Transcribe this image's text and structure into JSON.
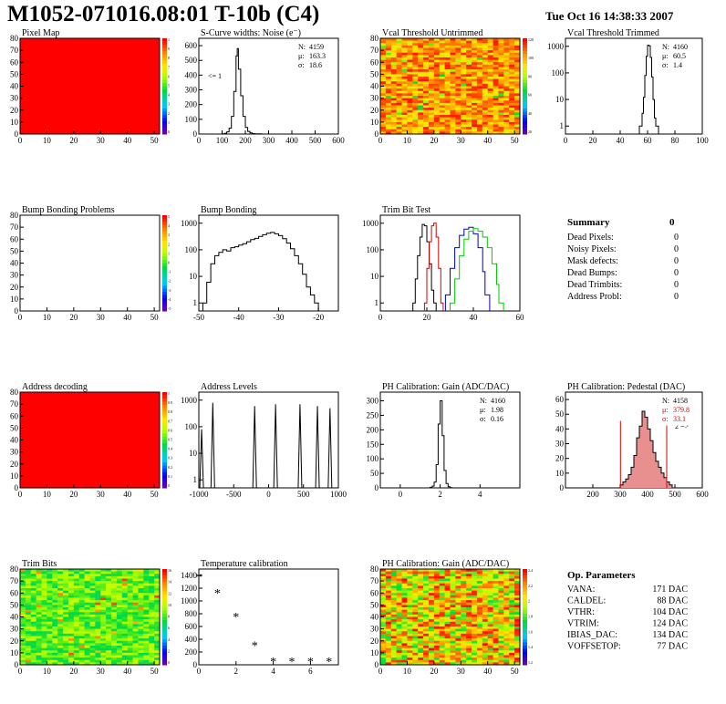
{
  "header": {
    "title": "M1052-071016.08:01 T-10b (C4)",
    "date": "Tue Oct 16 14:38:33 2007"
  },
  "colors": {
    "red_fill": "#ff0000",
    "trim_curve_1": "#000000",
    "trim_curve_2": "#d40000",
    "trim_curve_3": "#0000cc",
    "trim_curve_4": "#00cc00",
    "stat_red_text": "#d40000",
    "pedestal_fill": "#e89090"
  },
  "summary": {
    "title": "Summary",
    "total": "0",
    "rows": [
      {
        "label": "Dead Pixels:",
        "value": "0"
      },
      {
        "label": "Noisy Pixels:",
        "value": "0"
      },
      {
        "label": "Mask defects:",
        "value": "0"
      },
      {
        "label": "Dead Bumps:",
        "value": "0"
      },
      {
        "label": "Dead Trimbits:",
        "value": "0"
      },
      {
        "label": "Address Probl:",
        "value": "0"
      }
    ]
  },
  "op_params": {
    "title": "Op. Parameters",
    "rows": [
      {
        "label": "VANA:",
        "value": "171 DAC"
      },
      {
        "label": "CALDEL:",
        "value": "88 DAC"
      },
      {
        "label": "VTHR:",
        "value": "104 DAC"
      },
      {
        "label": "VTRIM:",
        "value": "124 DAC"
      },
      {
        "label": "IBIAS_DAC:",
        "value": "134 DAC"
      },
      {
        "label": "VOFFSETOP:",
        "value": "77 DAC"
      }
    ]
  },
  "chart_data": [
    {
      "type": "heatmap",
      "title": "Pixel Map",
      "xlim": [
        0,
        52
      ],
      "ylim": [
        0,
        80
      ],
      "xticks": [
        0,
        10,
        20,
        30,
        40,
        50
      ],
      "yticks": [
        0,
        10,
        20,
        30,
        40,
        50,
        60,
        70,
        80
      ],
      "fill": "uniform-red",
      "palette_labels": [
        "1",
        "9",
        "8",
        "7",
        "6",
        "5",
        "4",
        "3",
        "2",
        "1",
        "0"
      ]
    },
    {
      "type": "histogram",
      "title": "S-Curve widths: Noise (e⁻)",
      "xlim": [
        0,
        600
      ],
      "ylim": [
        0,
        650
      ],
      "xticks": [
        0,
        100,
        200,
        300,
        400,
        500,
        600
      ],
      "yticks": [
        0,
        100,
        200,
        300,
        400,
        500,
        600
      ],
      "annotation": "<= 1",
      "stats": [
        {
          "label": "N:",
          "value": "4159"
        },
        {
          "label": "μ:",
          "value": "163.3"
        },
        {
          "label": "σ:",
          "value": "18.6"
        }
      ],
      "bins": [
        {
          "x": 100,
          "y": 2
        },
        {
          "x": 110,
          "y": 5
        },
        {
          "x": 120,
          "y": 15
        },
        {
          "x": 130,
          "y": 40
        },
        {
          "x": 140,
          "y": 120
        },
        {
          "x": 150,
          "y": 290
        },
        {
          "x": 160,
          "y": 530
        },
        {
          "x": 165,
          "y": 580
        },
        {
          "x": 170,
          "y": 440
        },
        {
          "x": 180,
          "y": 260
        },
        {
          "x": 190,
          "y": 120
        },
        {
          "x": 200,
          "y": 45
        },
        {
          "x": 210,
          "y": 18
        },
        {
          "x": 220,
          "y": 8
        },
        {
          "x": 230,
          "y": 3
        },
        {
          "x": 240,
          "y": 2
        },
        {
          "x": 260,
          "y": 1
        }
      ]
    },
    {
      "type": "heatmap",
      "title": "Vcal Threshold Untrimmed",
      "xlim": [
        0,
        52
      ],
      "ylim": [
        0,
        80
      ],
      "xticks": [
        0,
        10,
        20,
        30,
        40,
        50
      ],
      "yticks": [
        0,
        10,
        20,
        30,
        40,
        50,
        60,
        70,
        80
      ],
      "fill": "noise-warm",
      "palette_labels": [
        "120",
        "100",
        "80",
        "60",
        "40",
        "20"
      ]
    },
    {
      "type": "histogram",
      "title": "Vcal Threshold Trimmed",
      "log_y": true,
      "xlim": [
        0,
        100
      ],
      "ylim": [
        0.5,
        2000
      ],
      "xticks": [
        0,
        20,
        40,
        60,
        80,
        100
      ],
      "yticks": [
        1,
        10,
        100,
        1000
      ],
      "stats": [
        {
          "label": "N:",
          "value": "4160"
        },
        {
          "label": "μ:",
          "value": "60.5"
        },
        {
          "label": "σ:",
          "value": "1.4"
        }
      ],
      "bins": [
        {
          "x": 54,
          "y": 1
        },
        {
          "x": 56,
          "y": 3
        },
        {
          "x": 57,
          "y": 12
        },
        {
          "x": 58,
          "y": 80
        },
        {
          "x": 59,
          "y": 420
        },
        {
          "x": 60,
          "y": 1100
        },
        {
          "x": 61,
          "y": 1050
        },
        {
          "x": 62,
          "y": 380
        },
        {
          "x": 63,
          "y": 70
        },
        {
          "x": 64,
          "y": 10
        },
        {
          "x": 65,
          "y": 2
        },
        {
          "x": 66,
          "y": 1
        }
      ]
    },
    {
      "type": "heatmap",
      "title": "Bump Bonding Problems",
      "xlim": [
        0,
        52
      ],
      "ylim": [
        0,
        80
      ],
      "xticks": [
        0,
        10,
        20,
        30,
        40,
        50
      ],
      "yticks": [
        0,
        10,
        20,
        30,
        40,
        50,
        60,
        70,
        80
      ],
      "fill": "empty",
      "palette_labels": [
        "5",
        "4",
        "3",
        "2",
        "1",
        "0",
        "-1",
        "-2",
        "-3",
        "-4",
        "-5"
      ]
    },
    {
      "type": "histogram",
      "title": "Bump Bonding",
      "log_y": true,
      "xlim": [
        -50,
        -15
      ],
      "ylim": [
        0.5,
        2000
      ],
      "xticks": [
        -50,
        -40,
        -30,
        -20
      ],
      "yticks": [
        1,
        10,
        100,
        1000
      ],
      "bins": [
        {
          "x": -49,
          "y": 1
        },
        {
          "x": -48,
          "y": 6
        },
        {
          "x": -47,
          "y": 30
        },
        {
          "x": -46,
          "y": 60
        },
        {
          "x": -45,
          "y": 80
        },
        {
          "x": -44,
          "y": 100
        },
        {
          "x": -43,
          "y": 90
        },
        {
          "x": -42,
          "y": 120
        },
        {
          "x": -41,
          "y": 130
        },
        {
          "x": -40,
          "y": 150
        },
        {
          "x": -39,
          "y": 170
        },
        {
          "x": -38,
          "y": 200
        },
        {
          "x": -37,
          "y": 240
        },
        {
          "x": -36,
          "y": 270
        },
        {
          "x": -35,
          "y": 320
        },
        {
          "x": -34,
          "y": 370
        },
        {
          "x": -33,
          "y": 420
        },
        {
          "x": -32,
          "y": 450
        },
        {
          "x": -31,
          "y": 400
        },
        {
          "x": -30,
          "y": 340
        },
        {
          "x": -29,
          "y": 260
        },
        {
          "x": -28,
          "y": 180
        },
        {
          "x": -27,
          "y": 110
        },
        {
          "x": -26,
          "y": 60
        },
        {
          "x": -25,
          "y": 30
        },
        {
          "x": -24,
          "y": 12
        },
        {
          "x": -23,
          "y": 4
        },
        {
          "x": -22,
          "y": 2
        },
        {
          "x": -21,
          "y": 1
        }
      ]
    },
    {
      "type": "histogram",
      "title": "Trim Bit Test",
      "log_y": true,
      "xlim": [
        0,
        60
      ],
      "ylim": [
        0.5,
        2000
      ],
      "xticks": [
        0,
        20,
        40,
        60
      ],
      "yticks": [
        1,
        10,
        100,
        1000
      ],
      "series": [
        {
          "color": "#000000",
          "points": [
            [
              14,
              1
            ],
            [
              15,
              8
            ],
            [
              16,
              60
            ],
            [
              17,
              300
            ],
            [
              18,
              900
            ],
            [
              19,
              800
            ],
            [
              20,
              200
            ],
            [
              21,
              30
            ],
            [
              22,
              3
            ],
            [
              23,
              1
            ]
          ]
        },
        {
          "color": "#d40000",
          "points": [
            [
              19,
              1
            ],
            [
              20,
              20
            ],
            [
              21,
              200
            ],
            [
              22,
              800
            ],
            [
              23,
              1000
            ],
            [
              24,
              300
            ],
            [
              25,
              20
            ],
            [
              26,
              1
            ]
          ]
        },
        {
          "color": "#0000cc",
          "points": [
            [
              28,
              2
            ],
            [
              30,
              20
            ],
            [
              32,
              120
            ],
            [
              34,
              350
            ],
            [
              36,
              600
            ],
            [
              38,
              700
            ],
            [
              40,
              400
            ],
            [
              42,
              120
            ],
            [
              44,
              15
            ],
            [
              45,
              2
            ]
          ]
        },
        {
          "color": "#00cc00",
          "points": [
            [
              30,
              1
            ],
            [
              32,
              8
            ],
            [
              34,
              60
            ],
            [
              36,
              250
            ],
            [
              38,
              500
            ],
            [
              40,
              620
            ],
            [
              42,
              500
            ],
            [
              44,
              300
            ],
            [
              46,
              120
            ],
            [
              48,
              30
            ],
            [
              50,
              5
            ],
            [
              51,
              1
            ]
          ]
        }
      ]
    },
    {
      "type": "heatmap",
      "title": "Address decoding",
      "xlim": [
        0,
        52
      ],
      "ylim": [
        0,
        80
      ],
      "xticks": [
        0,
        10,
        20,
        30,
        40,
        50
      ],
      "yticks": [
        0,
        10,
        20,
        30,
        40,
        50,
        60,
        70,
        80
      ],
      "fill": "uniform-red",
      "palette_labels": [
        "1",
        "0.9",
        "0.8",
        "0.7",
        "0.6",
        "0.5",
        "0.4",
        "0.3",
        "0.2",
        "0.1",
        "0"
      ]
    },
    {
      "type": "histogram",
      "title": "Address Levels",
      "log_y": true,
      "xlim": [
        -1000,
        1000
      ],
      "ylim": [
        0.5,
        2000
      ],
      "xticks": [
        -1000,
        -500,
        0,
        500,
        1000
      ],
      "yticks": [
        1,
        10,
        100,
        1000
      ],
      "spikes": [
        {
          "x": -960,
          "y": 80
        },
        {
          "x": -800,
          "y": 800
        },
        {
          "x": -200,
          "y": 600
        },
        {
          "x": 100,
          "y": 700
        },
        {
          "x": 450,
          "y": 700
        },
        {
          "x": 700,
          "y": 600
        },
        {
          "x": 880,
          "y": 500
        }
      ]
    },
    {
      "type": "histogram",
      "title": "PH Calibration: Gain (ADC/DAC)",
      "xlim": [
        -1,
        6
      ],
      "ylim": [
        0,
        330
      ],
      "xticks": [
        0,
        2,
        4
      ],
      "yticks": [
        0,
        50,
        100,
        150,
        200,
        250,
        300
      ],
      "stats": [
        {
          "label": "N:",
          "value": "4160"
        },
        {
          "label": "μ:",
          "value": "1.98"
        },
        {
          "label": "σ:",
          "value": "0.16"
        }
      ],
      "bins": [
        {
          "x": 1.5,
          "y": 2
        },
        {
          "x": 1.6,
          "y": 6
        },
        {
          "x": 1.7,
          "y": 20
        },
        {
          "x": 1.8,
          "y": 80
        },
        {
          "x": 1.9,
          "y": 220
        },
        {
          "x": 2.0,
          "y": 300
        },
        {
          "x": 2.1,
          "y": 180
        },
        {
          "x": 2.2,
          "y": 60
        },
        {
          "x": 2.3,
          "y": 15
        },
        {
          "x": 2.4,
          "y": 4
        },
        {
          "x": 2.5,
          "y": 1
        }
      ]
    },
    {
      "type": "histogram",
      "title": "PH Calibration: Pedestal (DAC)",
      "xlim": [
        100,
        600
      ],
      "ylim": [
        0,
        65
      ],
      "xticks": [
        200,
        300,
        400,
        500,
        600
      ],
      "yticks": [
        0,
        10,
        20,
        30,
        40,
        50,
        60
      ],
      "annotation": "2 =>",
      "stats": [
        {
          "label": "N:",
          "value": "4158"
        },
        {
          "label": "μ:",
          "value": "379.8",
          "red": true
        },
        {
          "label": "σ:",
          "value": "33.1",
          "red": true
        }
      ],
      "cut_lines": [
        301,
        470
      ],
      "bins": [
        {
          "x": 300,
          "y": 2
        },
        {
          "x": 310,
          "y": 4
        },
        {
          "x": 320,
          "y": 6
        },
        {
          "x": 330,
          "y": 9
        },
        {
          "x": 340,
          "y": 14
        },
        {
          "x": 350,
          "y": 22
        },
        {
          "x": 360,
          "y": 34
        },
        {
          "x": 370,
          "y": 42
        },
        {
          "x": 380,
          "y": 52
        },
        {
          "x": 390,
          "y": 48
        },
        {
          "x": 400,
          "y": 40
        },
        {
          "x": 410,
          "y": 32
        },
        {
          "x": 420,
          "y": 24
        },
        {
          "x": 430,
          "y": 18
        },
        {
          "x": 440,
          "y": 14
        },
        {
          "x": 450,
          "y": 10
        },
        {
          "x": 460,
          "y": 7
        },
        {
          "x": 470,
          "y": 4
        },
        {
          "x": 480,
          "y": 2
        }
      ]
    },
    {
      "type": "heatmap",
      "title": "Trim Bits",
      "xlim": [
        0,
        52
      ],
      "ylim": [
        0,
        80
      ],
      "xticks": [
        0,
        10,
        20,
        30,
        40,
        50
      ],
      "yticks": [
        0,
        10,
        20,
        30,
        40,
        50,
        60,
        70,
        80
      ],
      "fill": "noise-green",
      "palette_labels": [
        "16",
        "14",
        "12",
        "10",
        "8",
        "6",
        "4",
        "2",
        "0"
      ]
    },
    {
      "type": "scatter",
      "title": "Temperature calibration",
      "marker": "*",
      "xlim": [
        0,
        7.5
      ],
      "ylim": [
        0,
        1500
      ],
      "xticks": [
        0,
        2,
        4,
        6,
        8
      ],
      "yticks": [
        0,
        200,
        400,
        600,
        800,
        1000,
        1200,
        1400
      ],
      "points": [
        [
          0,
          1380
        ],
        [
          1,
          1130
        ],
        [
          2,
          760
        ],
        [
          3,
          310
        ],
        [
          4,
          60
        ],
        [
          5,
          60
        ],
        [
          6,
          60
        ],
        [
          7,
          60
        ]
      ]
    },
    {
      "type": "heatmap",
      "title": "PH Calibration: Gain (ADC/DAC)",
      "xlim": [
        0,
        52
      ],
      "ylim": [
        0,
        80
      ],
      "xticks": [
        0,
        10,
        20,
        30,
        40,
        50
      ],
      "yticks": [
        0,
        10,
        20,
        30,
        40,
        50,
        60,
        70,
        80
      ],
      "fill": "noise-mixed",
      "palette_labels": [
        "2.4",
        "2.2",
        "2",
        "1.8",
        "1.6",
        "1.4",
        "1.2"
      ]
    }
  ]
}
